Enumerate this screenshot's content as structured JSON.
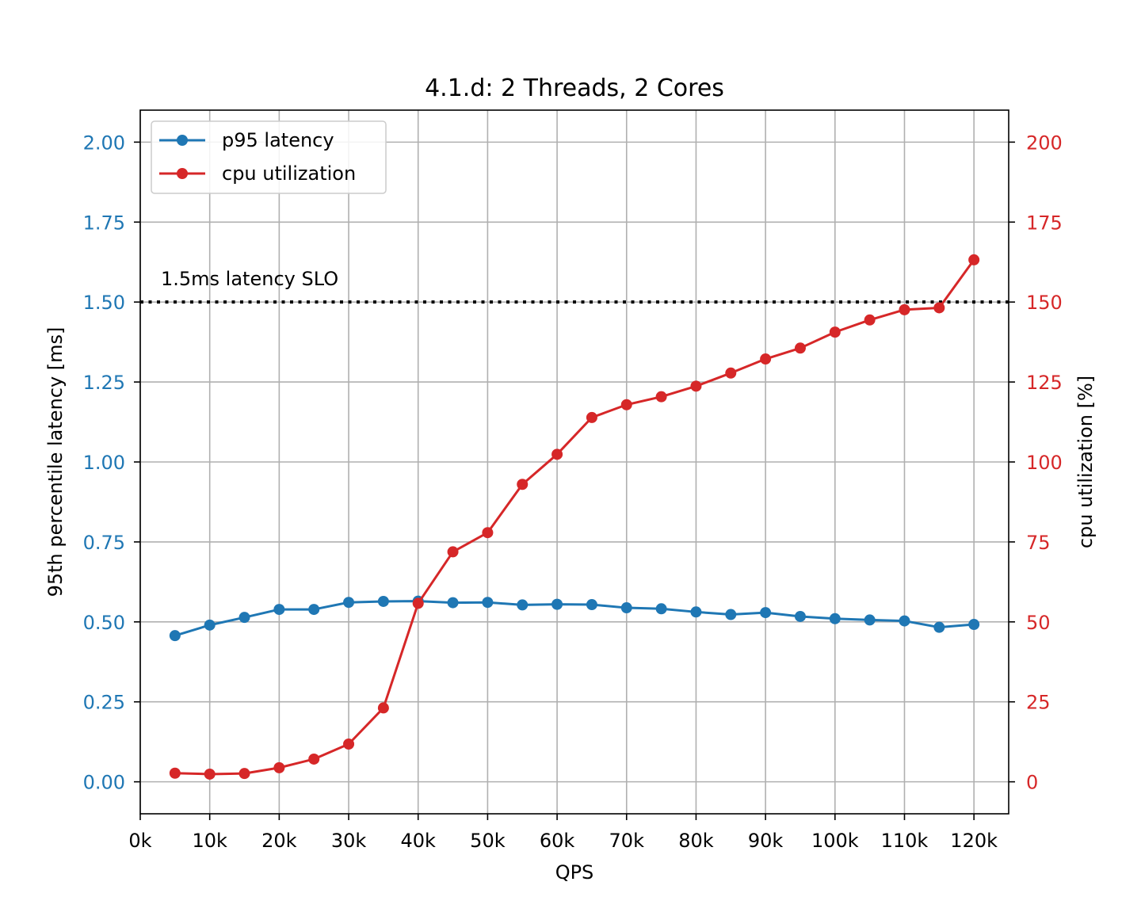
{
  "chart_data": {
    "type": "line",
    "title": "4.1.d: 2 Threads, 2 Cores",
    "xlabel": "QPS",
    "ylabel_left": "95th percentile latency [ms]",
    "ylabel_right": "cpu utilization [%]",
    "xlim": [
      0,
      125000
    ],
    "ylim_left": [
      -0.1,
      2.1
    ],
    "ylim_right": [
      -10,
      210
    ],
    "grid": true,
    "legend_position": "top-left",
    "x_ticks": [
      0,
      10000,
      20000,
      30000,
      40000,
      50000,
      60000,
      70000,
      80000,
      90000,
      100000,
      110000,
      120000
    ],
    "x_tick_labels": [
      "0k",
      "10k",
      "20k",
      "30k",
      "40k",
      "50k",
      "60k",
      "70k",
      "80k",
      "90k",
      "100k",
      "110k",
      "120k"
    ],
    "y_left_ticks": [
      0,
      0.25,
      0.5,
      0.75,
      1.0,
      1.25,
      1.5,
      1.75,
      2.0
    ],
    "y_left_tick_labels": [
      "0.00",
      "0.25",
      "0.50",
      "0.75",
      "1.00",
      "1.25",
      "1.50",
      "1.75",
      "2.00"
    ],
    "y_right_ticks": [
      0,
      25,
      50,
      75,
      100,
      125,
      150,
      175,
      200
    ],
    "y_right_tick_labels": [
      "0",
      "25",
      "50",
      "75",
      "100",
      "125",
      "150",
      "175",
      "200"
    ],
    "x": [
      5000,
      10000,
      15000,
      20000,
      25000,
      30000,
      35000,
      40000,
      45000,
      50000,
      55000,
      60000,
      65000,
      70000,
      75000,
      80000,
      85000,
      90000,
      95000,
      100000,
      105000,
      110000,
      115000,
      120000
    ],
    "series": [
      {
        "name": "p95 latency",
        "axis": "left",
        "color": "#1f77b4",
        "values": [
          0.457,
          0.49,
          0.514,
          0.539,
          0.539,
          0.561,
          0.564,
          0.565,
          0.56,
          0.561,
          0.553,
          0.555,
          0.554,
          0.544,
          0.541,
          0.531,
          0.523,
          0.529,
          0.517,
          0.51,
          0.506,
          0.503,
          0.483,
          0.492
        ]
      },
      {
        "name": "cpu utilization",
        "axis": "right",
        "color": "#d62728",
        "values": [
          2.7,
          2.4,
          2.6,
          4.4,
          7.1,
          11.8,
          23.1,
          55.8,
          71.9,
          77.9,
          93.0,
          102.4,
          113.9,
          117.9,
          120.4,
          123.7,
          127.8,
          132.2,
          135.6,
          140.6,
          144.4,
          147.6,
          148.2,
          163.2
        ]
      }
    ],
    "annotation": {
      "text": "1.5ms latency SLO",
      "y": 1.5,
      "axis": "left",
      "style": "dotted",
      "color": "#000000"
    }
  }
}
